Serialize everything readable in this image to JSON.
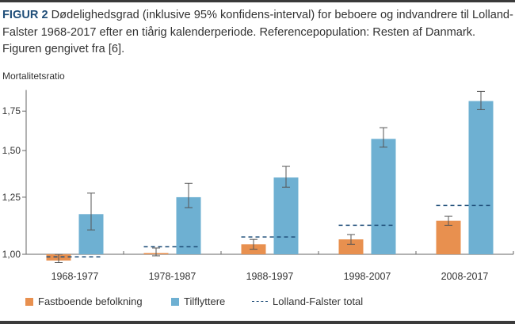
{
  "caption": {
    "label": "FIGUR 2",
    "text": "Dødelighedsgrad (inklusive 95% konfidens-interval) for beboere og indvandrere til Lolland-Falster 1968-2017 efter en tiårig kalenderperiode. Referencepopulation: Resten af Danmark. Figuren gengivet fra [6]."
  },
  "chart_data": {
    "type": "bar",
    "title": "",
    "ylabel": "Mortalitetsratio",
    "xlabel": "",
    "yscale": "log",
    "ylim": [
      0.96,
      1.9
    ],
    "yticks": [
      1.0,
      1.25,
      1.5,
      1.75
    ],
    "ytick_labels": [
      "1,00",
      "1,25",
      "1,50",
      "1,75"
    ],
    "categories": [
      "1968-1977",
      "1978-1987",
      "1988-1997",
      "1998-2007",
      "2008-2017"
    ],
    "series": [
      {
        "name": "Fastboende befolkning",
        "color": "#e8904f",
        "values": [
          0.976,
          1.005,
          1.04,
          1.06,
          1.14
        ],
        "ci_low": [
          0.968,
          0.994,
          1.02,
          1.04,
          1.12
        ],
        "ci_high": [
          1.0,
          1.025,
          1.06,
          1.08,
          1.16
        ]
      },
      {
        "name": "Tilflyttere",
        "color": "#6eb0d2",
        "values": [
          1.17,
          1.25,
          1.35,
          1.57,
          1.82
        ],
        "ci_low": [
          1.1,
          1.2,
          1.3,
          1.52,
          1.76
        ],
        "ci_high": [
          1.27,
          1.32,
          1.41,
          1.64,
          1.89
        ]
      }
    ],
    "reference_line": {
      "name": "Lolland-Falster total",
      "color": "#1f4e79",
      "values": [
        0.99,
        1.03,
        1.07,
        1.12,
        1.21
      ]
    },
    "legend_position": "bottom",
    "grid": false
  }
}
